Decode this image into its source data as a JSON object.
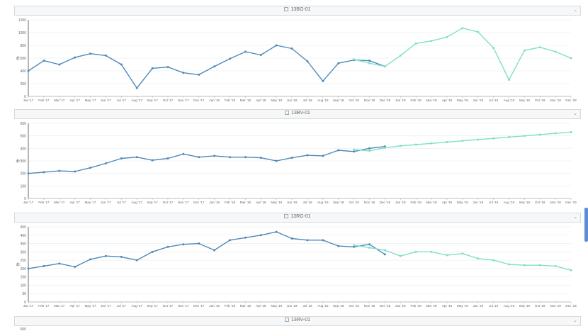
{
  "months": [
    "Jan '17",
    "Feb '17",
    "Mar '17",
    "Apr '17",
    "May '17",
    "Jun '17",
    "Jul '17",
    "Aug '17",
    "Sep '17",
    "Oct '17",
    "Nov '17",
    "Dec '17",
    "Jan '18",
    "Feb '18",
    "Mar '18",
    "Apr '18",
    "May '18",
    "Jun '18",
    "Jul '18",
    "Aug '18",
    "Sep '18",
    "Oct '18",
    "Nov '18",
    "Dec '18",
    "Jan '19",
    "Feb '19",
    "Mar '19",
    "Apr '19",
    "May '19",
    "Jun '19",
    "Jul '19",
    "Aug '19",
    "Sep '19",
    "Oct '19",
    "Nov '19",
    "Dec '19"
  ],
  "colors": {
    "actual": "#4e88b8",
    "forecast": "#7fe0c6",
    "grid": "#edf0f2",
    "axis": "#666666"
  },
  "chart_data": [
    {
      "type": "line",
      "title": "13BG-01",
      "ylabel": "件",
      "ylim": [
        0,
        1200
      ],
      "yticks": [
        0,
        200,
        400,
        600,
        800,
        1000,
        1200
      ],
      "ytick_labels": [
        "0",
        "200",
        "400",
        "600",
        "800",
        "1000",
        "1200"
      ],
      "series": [
        {
          "values": [
            400,
            560,
            500,
            610,
            670,
            640,
            500,
            130,
            440,
            460,
            370,
            340,
            470,
            590,
            700,
            650,
            800,
            750,
            550,
            240,
            520,
            570,
            560,
            470,
            null,
            null,
            null,
            null,
            null,
            null,
            null,
            null,
            null,
            null,
            null,
            null
          ]
        },
        {
          "values": [
            null,
            null,
            null,
            null,
            null,
            null,
            null,
            null,
            null,
            null,
            null,
            null,
            null,
            null,
            null,
            null,
            null,
            null,
            null,
            null,
            null,
            580,
            520,
            470,
            640,
            830,
            870,
            930,
            1070,
            1010,
            760,
            260,
            720,
            770,
            700,
            600
          ]
        }
      ]
    },
    {
      "type": "line",
      "title": "13BV-01",
      "ylabel": "件",
      "ylim": [
        0,
        600
      ],
      "yticks": [
        0,
        100,
        200,
        300,
        400,
        500,
        600
      ],
      "ytick_labels": [
        "0",
        "100",
        "200",
        "300",
        "400",
        "500",
        "600"
      ],
      "series": [
        {
          "values": [
            200,
            210,
            220,
            215,
            245,
            280,
            320,
            330,
            305,
            320,
            355,
            330,
            340,
            330,
            330,
            325,
            300,
            325,
            345,
            340,
            385,
            375,
            400,
            415,
            null,
            null,
            null,
            null,
            null,
            null,
            null,
            null,
            null,
            null,
            null,
            null
          ]
        },
        {
          "values": [
            null,
            null,
            null,
            null,
            null,
            null,
            null,
            null,
            null,
            null,
            null,
            null,
            null,
            null,
            null,
            null,
            null,
            null,
            null,
            null,
            null,
            390,
            380,
            405,
            420,
            430,
            440,
            450,
            460,
            470,
            480,
            490,
            500,
            510,
            520,
            530
          ]
        }
      ]
    },
    {
      "type": "line",
      "title": "13RG-01",
      "ylabel": "件",
      "ylim": [
        0,
        450
      ],
      "yticks": [
        0,
        50,
        100,
        150,
        200,
        250,
        300,
        350,
        400,
        450
      ],
      "ytick_labels": [
        "0",
        "50",
        "100",
        "150",
        "200",
        "250",
        "300",
        "350",
        "400",
        "450"
      ],
      "series": [
        {
          "values": [
            200,
            215,
            230,
            210,
            255,
            275,
            270,
            250,
            300,
            330,
            345,
            350,
            310,
            370,
            385,
            400,
            420,
            380,
            370,
            370,
            335,
            330,
            345,
            285,
            null,
            null,
            null,
            null,
            null,
            null,
            null,
            null,
            null,
            null,
            null,
            null
          ]
        },
        {
          "values": [
            null,
            null,
            null,
            null,
            null,
            null,
            null,
            null,
            null,
            null,
            null,
            null,
            null,
            null,
            null,
            null,
            null,
            null,
            null,
            null,
            null,
            340,
            325,
            310,
            275,
            300,
            300,
            280,
            290,
            260,
            250,
            225,
            220,
            220,
            215,
            190
          ]
        }
      ]
    },
    {
      "type": "line",
      "title": "13RV-01",
      "ylabel": "",
      "ylim": [
        0,
        600
      ],
      "yticks": [
        600
      ],
      "ytick_labels": [
        "600"
      ],
      "series": []
    }
  ]
}
